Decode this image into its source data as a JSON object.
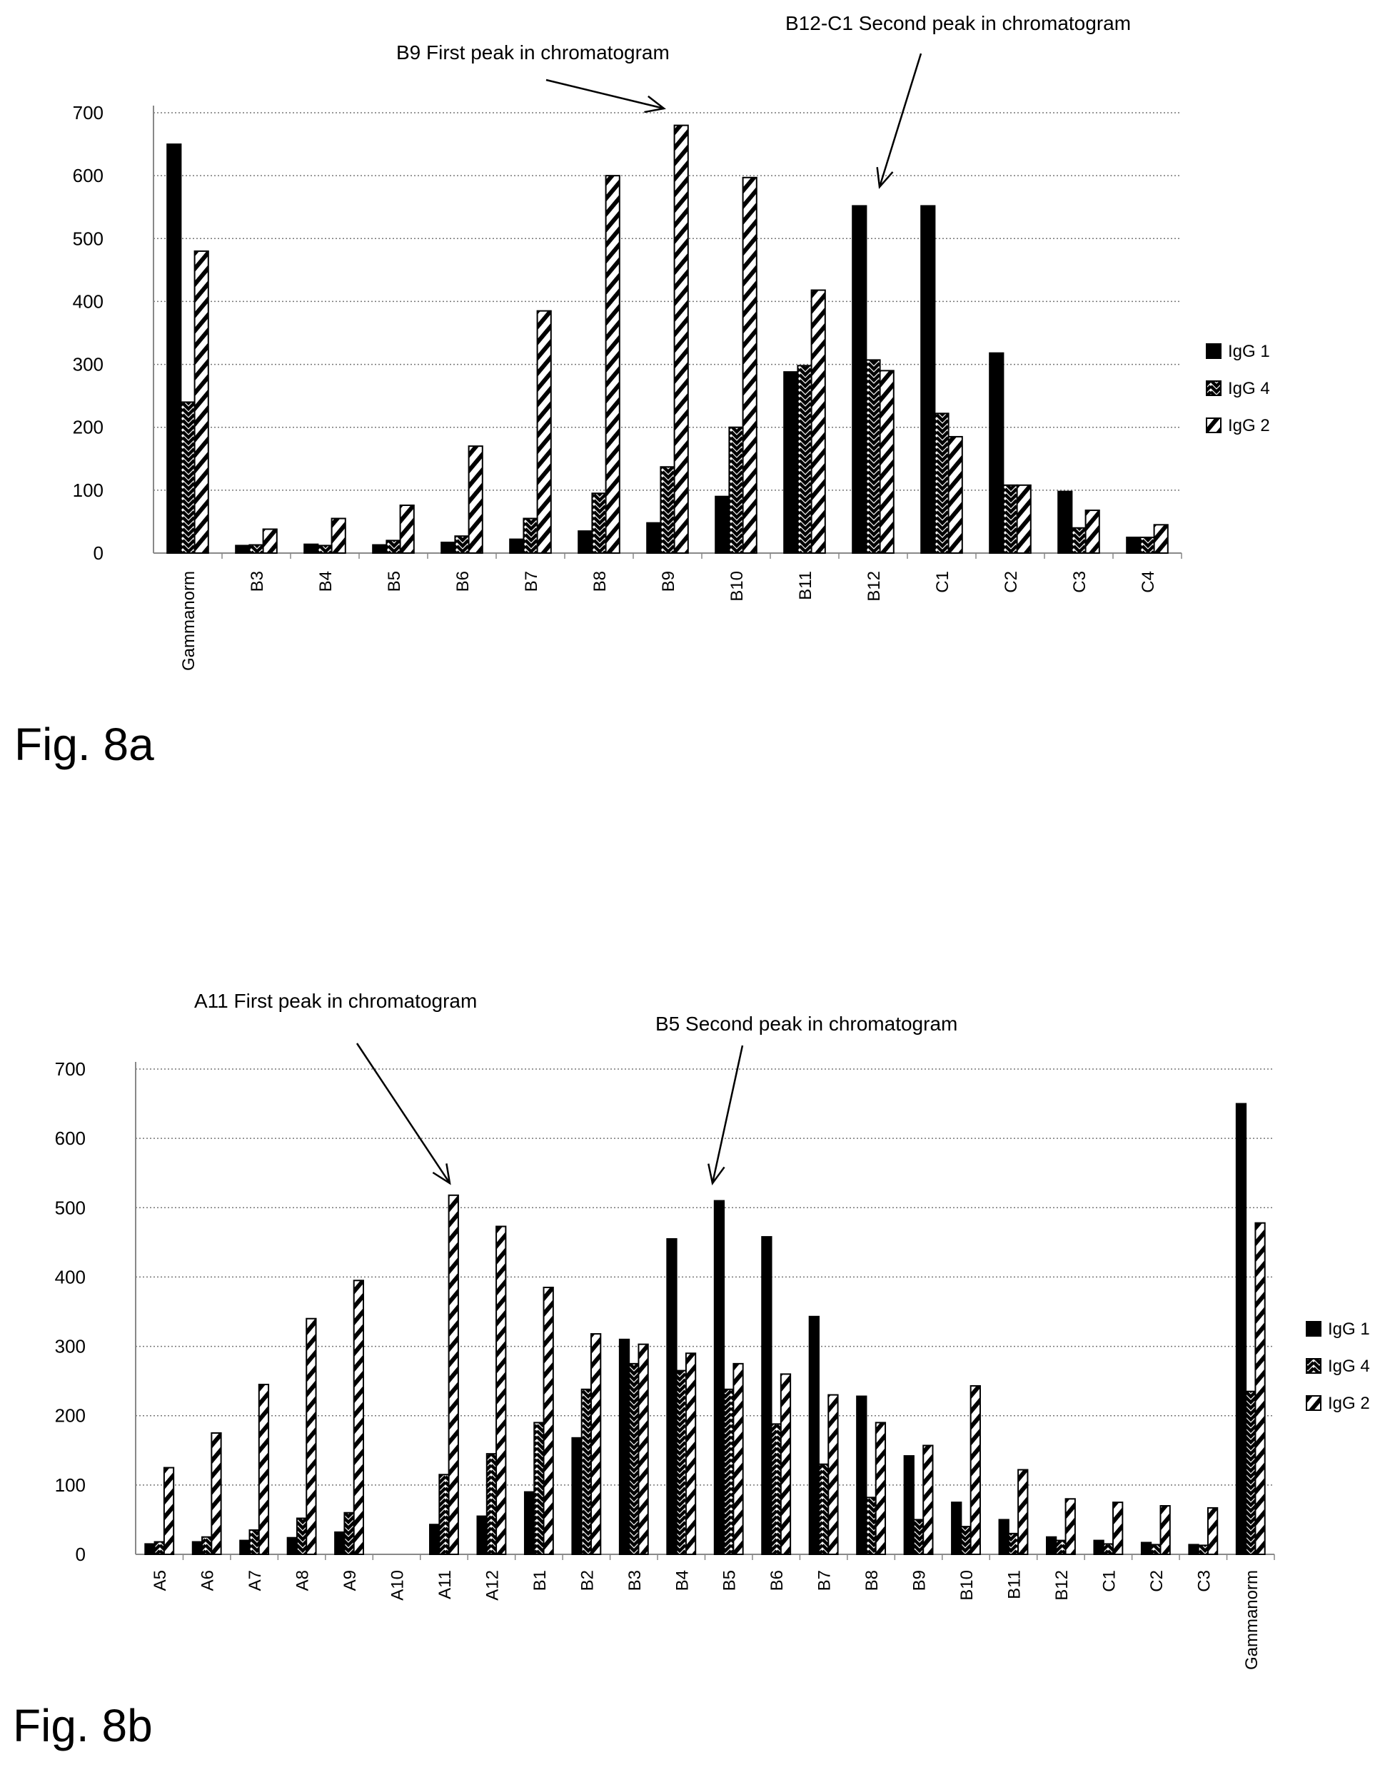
{
  "chart_data": [
    {
      "type": "bar",
      "figure_label": "Fig. 8a",
      "categories": [
        "Gammanorm",
        "B3",
        "B4",
        "B5",
        "B6",
        "B7",
        "B8",
        "B9",
        "B10",
        "B11",
        "B12",
        "C1",
        "C2",
        "C3",
        "C4"
      ],
      "series": [
        {
          "name": "IgG 1",
          "color": "#000000",
          "pattern": "solid",
          "values": [
            650,
            12,
            14,
            13,
            17,
            22,
            35,
            48,
            90,
            288,
            552,
            552,
            318,
            98,
            25
          ]
        },
        {
          "name": "IgG 4",
          "color": "#000000",
          "pattern": "zigzag",
          "values": [
            240,
            13,
            12,
            20,
            27,
            55,
            95,
            137,
            200,
            298,
            307,
            222,
            108,
            40,
            25
          ]
        },
        {
          "name": "IgG 2",
          "color": "#000000",
          "pattern": "diagonal",
          "values": [
            480,
            38,
            55,
            76,
            170,
            385,
            600,
            680,
            597,
            418,
            290,
            185,
            108,
            68,
            45
          ]
        }
      ],
      "ylim": [
        0,
        700
      ],
      "yticks": [
        "0",
        "100",
        "200",
        "300",
        "400",
        "500",
        "600",
        "700"
      ],
      "grid": true,
      "legend_position": "right",
      "annotations": [
        {
          "text": "B9 First peak in chromatogram",
          "target": "B9"
        },
        {
          "text": "B12-C1 Second peak in chromatogram",
          "target": "B12-C1"
        }
      ]
    },
    {
      "type": "bar",
      "figure_label": "Fig. 8b",
      "categories": [
        "A5",
        "A6",
        "A7",
        "A8",
        "A9",
        "A10",
        "A11",
        "A12",
        "B1",
        "B2",
        "B3",
        "B4",
        "B5",
        "B6",
        "B7",
        "B8",
        "B9",
        "B10",
        "B11",
        "B12",
        "C1",
        "C2",
        "C3",
        "Gammanorm"
      ],
      "series": [
        {
          "name": "IgG 1",
          "color": "#000000",
          "pattern": "solid",
          "values": [
            15,
            18,
            20,
            24,
            32,
            0,
            43,
            55,
            90,
            168,
            310,
            455,
            510,
            458,
            343,
            228,
            142,
            75,
            50,
            25,
            20,
            17,
            14,
            650
          ]
        },
        {
          "name": "IgG 4",
          "color": "#000000",
          "pattern": "zigzag",
          "values": [
            18,
            25,
            35,
            52,
            60,
            0,
            115,
            145,
            190,
            238,
            275,
            265,
            238,
            188,
            130,
            82,
            50,
            40,
            30,
            20,
            15,
            14,
            13,
            235
          ]
        },
        {
          "name": "IgG 2",
          "color": "#000000",
          "pattern": "diagonal",
          "values": [
            125,
            175,
            245,
            340,
            395,
            0,
            518,
            473,
            385,
            318,
            303,
            290,
            275,
            260,
            230,
            190,
            157,
            243,
            122,
            80,
            75,
            70,
            67,
            478
          ]
        }
      ],
      "ylim": [
        0,
        700
      ],
      "yticks": [
        "0",
        "100",
        "200",
        "300",
        "400",
        "500",
        "600",
        "700"
      ],
      "grid": true,
      "legend_position": "right",
      "annotations": [
        {
          "text": "A11 First peak in chromatogram",
          "target": "A11"
        },
        {
          "text": "B5 Second peak in chromatogram",
          "target": "B5"
        }
      ]
    }
  ]
}
